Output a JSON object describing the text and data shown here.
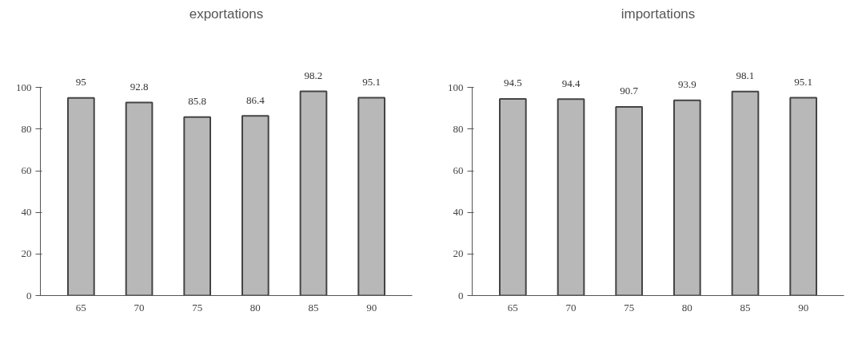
{
  "chart_data": [
    {
      "type": "bar",
      "title": "exportations",
      "categories": [
        "65",
        "70",
        "75",
        "80",
        "85",
        "90"
      ],
      "values": [
        95,
        92.8,
        85.8,
        86.4,
        98.2,
        95.1
      ],
      "color": "#b8b8b8",
      "ylim": [
        0,
        100
      ],
      "yticks": [
        0,
        20,
        40,
        60,
        80,
        100
      ],
      "data_labels": true,
      "grid": false
    },
    {
      "type": "bar",
      "title": "importations",
      "categories": [
        "65",
        "70",
        "75",
        "80",
        "85",
        "90"
      ],
      "values": [
        94.5,
        94.4,
        90.7,
        93.9,
        98.1,
        95.1
      ],
      "color": "#b8b8b8",
      "ylim": [
        0,
        100
      ],
      "yticks": [
        0,
        20,
        40,
        60,
        80,
        100
      ],
      "data_labels": true,
      "grid": false
    }
  ]
}
